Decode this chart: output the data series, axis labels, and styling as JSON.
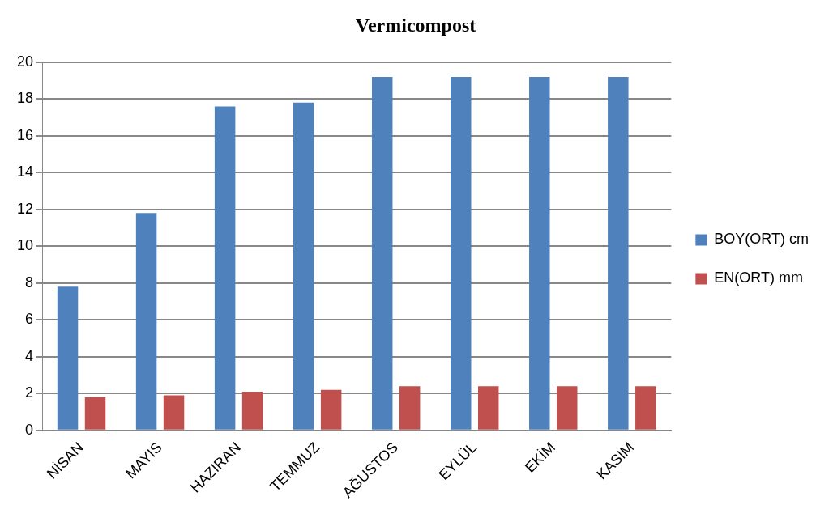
{
  "chart_data": {
    "type": "bar",
    "title": "Vermicompost",
    "categories": [
      "NİSAN",
      "MAYIS",
      "HAZIRAN",
      "TEMMUZ",
      "AĞUSTOS",
      "EYLÜL",
      "EKİM",
      "KASIM"
    ],
    "series": [
      {
        "name": "BOY(ORT) cm",
        "color": "#4f81bd",
        "values": [
          7.8,
          11.8,
          17.6,
          17.8,
          19.2,
          19.2,
          19.2,
          19.2
        ]
      },
      {
        "name": "EN(ORT) mm",
        "color": "#c0504d",
        "values": [
          1.8,
          1.9,
          2.1,
          2.2,
          2.4,
          2.4,
          2.4,
          2.4
        ]
      }
    ],
    "ylim": [
      0,
      20
    ],
    "yticks": [
      0,
      2,
      4,
      6,
      8,
      10,
      12,
      14,
      16,
      18,
      20
    ],
    "grid": "y",
    "legend": "right"
  }
}
